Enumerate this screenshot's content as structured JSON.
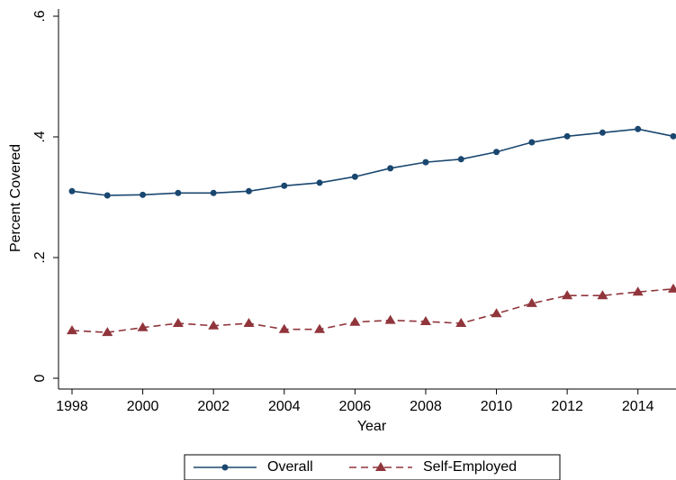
{
  "chart_data": {
    "type": "line",
    "x": [
      1998,
      1999,
      2000,
      2001,
      2002,
      2003,
      2004,
      2005,
      2006,
      2007,
      2008,
      2009,
      2010,
      2011,
      2012,
      2013,
      2014,
      2015
    ],
    "series": [
      {
        "name": "Overall",
        "color": "#1a476f",
        "marker": "circle",
        "dash": "solid",
        "values": [
          0.31,
          0.303,
          0.304,
          0.307,
          0.307,
          0.31,
          0.319,
          0.324,
          0.334,
          0.348,
          0.358,
          0.363,
          0.375,
          0.391,
          0.401,
          0.407,
          0.413,
          0.401
        ]
      },
      {
        "name": "Self-Employed",
        "color": "#90353b",
        "marker": "triangle",
        "dash": "dashed",
        "values": [
          0.079,
          0.076,
          0.084,
          0.091,
          0.087,
          0.091,
          0.081,
          0.081,
          0.093,
          0.096,
          0.094,
          0.091,
          0.107,
          0.124,
          0.137,
          0.137,
          0.143,
          0.148
        ]
      }
    ],
    "xlabel": "Year",
    "ylabel": "Percent Covered",
    "xlim": [
      1998,
      2015
    ],
    "xticks": [
      1998,
      2000,
      2002,
      2004,
      2006,
      2008,
      2010,
      2012,
      2014
    ],
    "ylim": [
      0,
      0.6
    ],
    "yticks": [
      0,
      {
        "value": 0.2,
        "label": ".2"
      },
      {
        "value": 0.4,
        "label": ".4"
      },
      {
        "value": 0.6,
        "label": ".6"
      }
    ],
    "grid": false,
    "legend": "bottom"
  }
}
